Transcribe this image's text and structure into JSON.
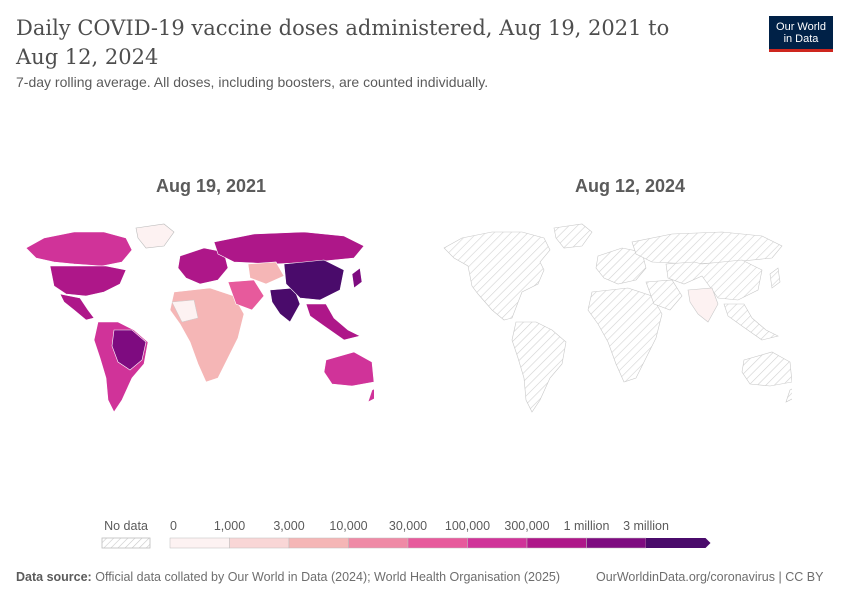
{
  "header": {
    "title": "Daily COVID-19 vaccine doses administered, Aug 19, 2021 to Aug 12, 2024",
    "subtitle": "7-day rolling average. All doses, including boosters, are counted individually.",
    "logo_line1": "Our World",
    "logo_line2": "in Data"
  },
  "panels": [
    {
      "date": "Aug 19, 2021"
    },
    {
      "date": "Aug 12, 2024"
    }
  ],
  "legend": {
    "no_data_label": "No data",
    "bins": [
      {
        "label": "0",
        "color": "#fdf2f2"
      },
      {
        "label": "1,000",
        "color": "#f9d6d6"
      },
      {
        "label": "3,000",
        "color": "#f5b6b6"
      },
      {
        "label": "10,000",
        "color": "#ef8aa6"
      },
      {
        "label": "30,000",
        "color": "#e75a9c"
      },
      {
        "label": "100,000",
        "color": "#d03399"
      },
      {
        "label": "300,000",
        "color": "#ae1789"
      },
      {
        "label": "1 million",
        "color": "#7e0b80"
      },
      {
        "label": "3 million",
        "color": "#4a0b6b"
      }
    ]
  },
  "footer": {
    "source_label": "Data source:",
    "source_text": "Official data collated by Our World in Data (2024); World Health Organisation (2025)",
    "url": "OurWorldinData.org/coronavirus | CC BY"
  }
}
